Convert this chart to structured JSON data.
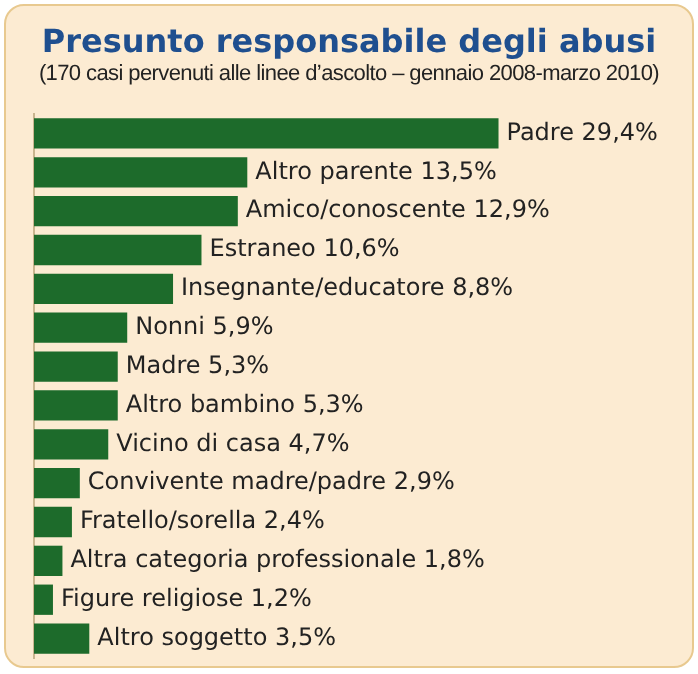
{
  "chart_data": {
    "type": "bar",
    "orientation": "horizontal",
    "title": "Presunto responsabile degli abusi",
    "subtitle": "(170 casi pervenuti alle linee d’ascolto – gennaio 2008-marzo 2010)",
    "categories": [
      null,
      null,
      null,
      null,
      null,
      null,
      null,
      null,
      null,
      null,
      null,
      null,
      null,
      null
    ],
    "values": [
      29.4,
      13.5,
      12.9,
      10.6,
      8.8,
      5.9,
      5.3,
      5.3,
      4.7,
      2.9,
      2.4,
      1.8,
      1.2,
      3.5
    ],
    "value_labels": [
      "Padre 29,4%",
      "Altro parente 13,5%",
      "Amico/conoscente 12,9%",
      "Estraneo 10,6%",
      "Insegnante/educatore 8,8%",
      "Nonni 5,9%",
      "Madre 5,3%",
      "Altro bambino 5,3%",
      "Vicino di casa 4,7%",
      "Convivente madre/padre 2,9%",
      "Fratello/sorella 2,4%",
      "Altra categoria professionale 1,8%",
      "Figure religiose 1,2%",
      "Altro soggetto 3,5%"
    ],
    "color": "#1d6b2b",
    "grid": false,
    "legend": false
  }
}
